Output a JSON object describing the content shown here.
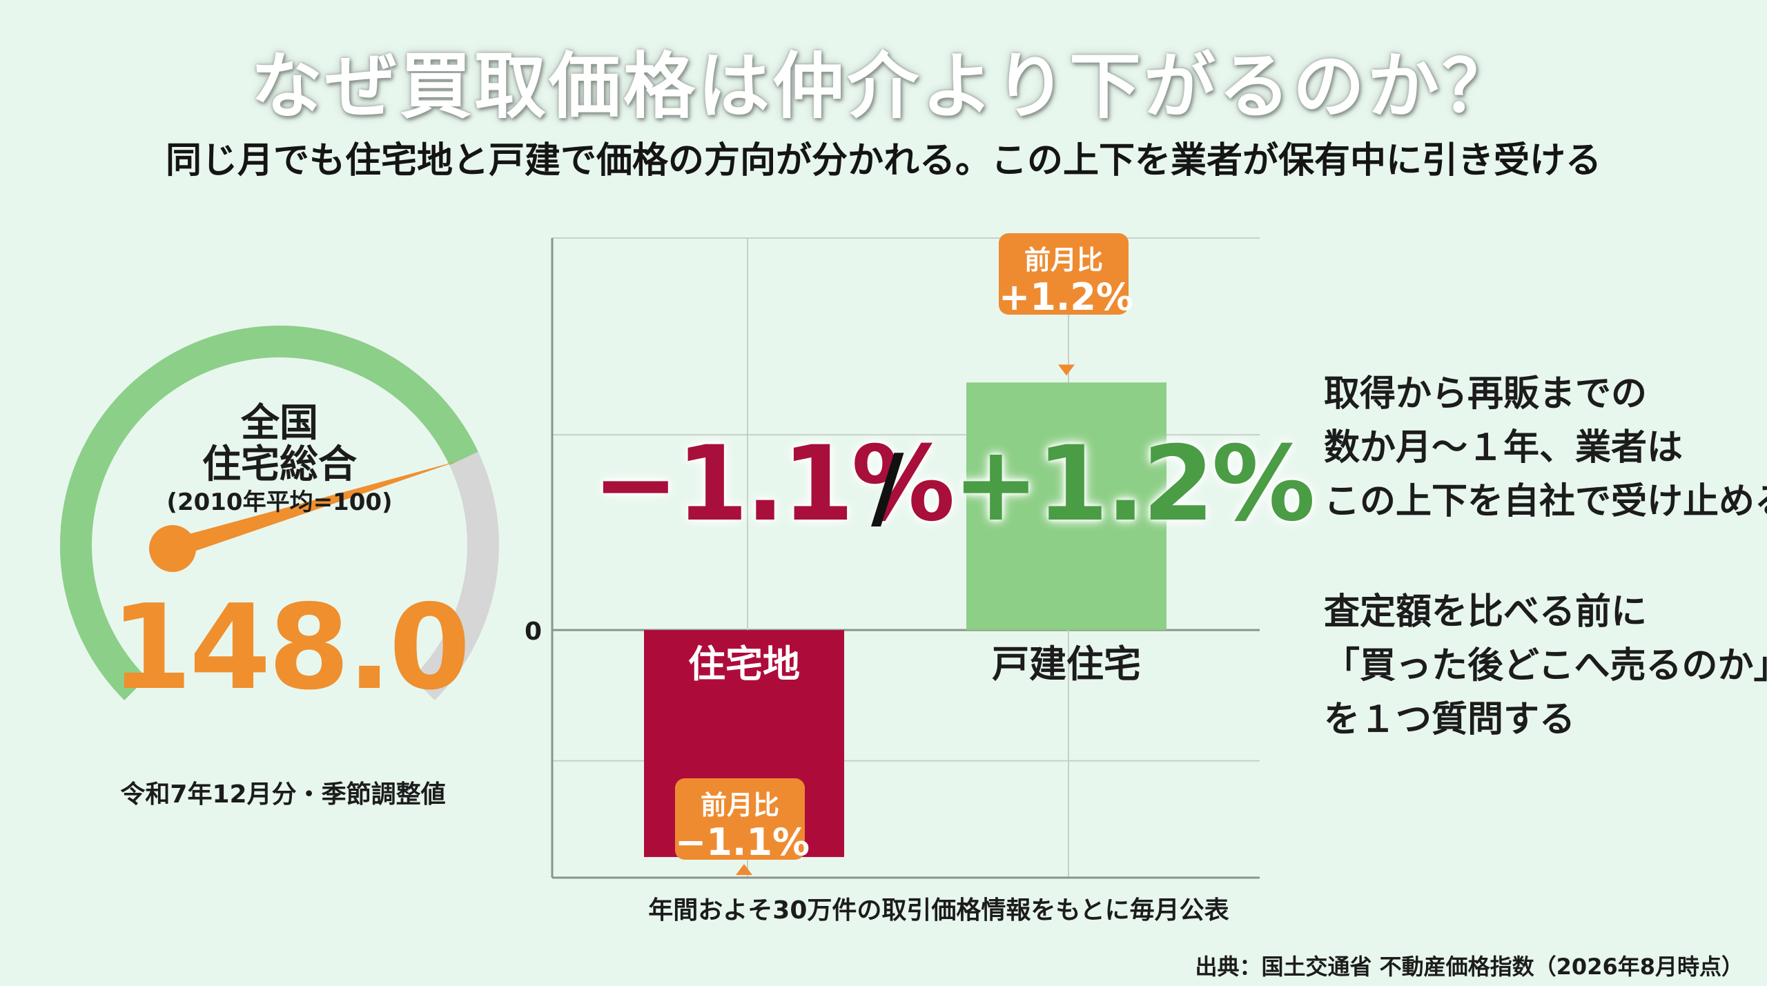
{
  "title": "なぜ買取価格は仲介より下がるのか？",
  "subtitle": "同じ月でも住宅地と戸建で価格の方向が分かれる。この上下を業者が保有中に引き受ける",
  "gauge": {
    "label_line1": "全国",
    "label_line2": "住宅総合",
    "base_note": "(2010年平均=100)",
    "value": "148.0",
    "period": "令和7年12月分・季節調整値",
    "level_fraction": 0.74,
    "colors": {
      "filled": "#8ccf88",
      "empty": "#d6d6d6",
      "needle": "#ef8f2e"
    }
  },
  "chart_data": {
    "type": "bar",
    "categories": [
      "住宅地",
      "戸建住宅"
    ],
    "values": [
      -1.1,
      1.2
    ],
    "ylim": [
      -1.2,
      1.9
    ],
    "zero_label": "0",
    "colors": [
      "#ad0c3b",
      "#8dcf86"
    ],
    "grid": true,
    "callouts": [
      {
        "label": "前月比",
        "value": "−1.1%"
      },
      {
        "label": "前月比",
        "value": "+1.2%"
      }
    ]
  },
  "headline": {
    "negative": "−1.1%",
    "slash": "/",
    "positive": "+1.2%"
  },
  "right_text": {
    "block1": [
      "取得から再販までの",
      "数か月〜１年、業者は",
      "この上下を自社で受け止める"
    ],
    "block2": [
      "査定額を比べる前に",
      "「買った後どこへ売るのか」",
      "を１つ質問する"
    ]
  },
  "chart_note": "年間およそ30万件の取引価格情報をもとに毎月公表",
  "source": "出典：国土交通省 不動産価格指数（2026年8月時点）"
}
